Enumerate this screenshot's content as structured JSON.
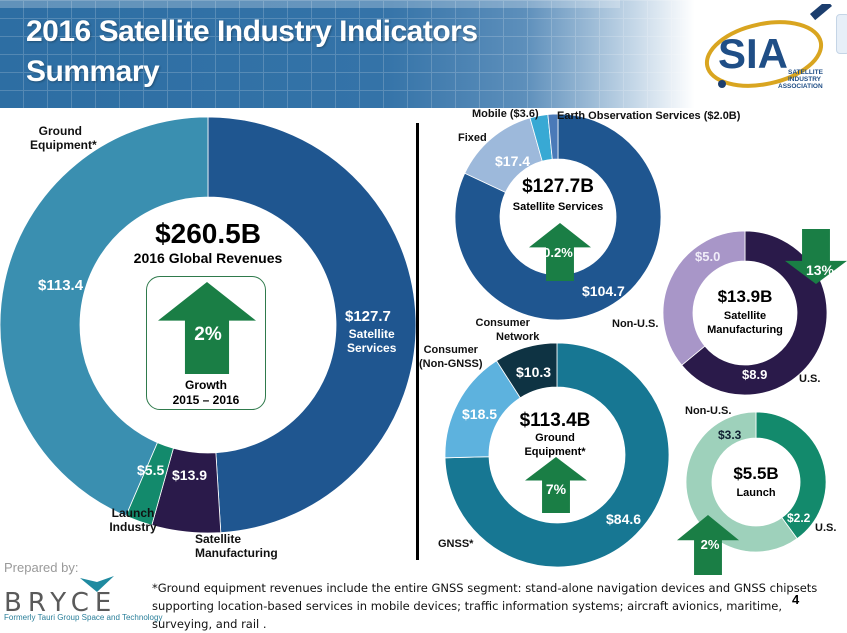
{
  "header": {
    "title_line1": "2016 Satellite Industry Indicators",
    "title_line2": "Summary",
    "logo": {
      "main": "SIA",
      "sub1": "SATELLITE",
      "sub2": "INDUSTRY",
      "sub3": "ASSOCIATION"
    }
  },
  "colors": {
    "ground_equipment": "#3a8fb0",
    "satellite_services": "#1f5690",
    "satellite_manufacturing": "#2a1a4a",
    "launch": "#138a6c",
    "growth_arrow": "#1a7e45",
    "services_fixed": "#9db9db",
    "services_mobile": "#38a9d4",
    "services_eo": "#4a7ab8",
    "mfg_nonus": "#a896c8",
    "ground_consumer_non_gnss": "#5db2de",
    "ground_network": "#0e3343",
    "ground_gnss": "#177793",
    "launch_nonus": "#9ed1bb"
  },
  "chart_data": [
    {
      "type": "pie",
      "id": "global",
      "title": "$260.5B",
      "subtitle": "2016 Global Revenues",
      "unit": "$B",
      "slices": [
        {
          "name": "Satellite Services",
          "value": 127.7,
          "label": "$127.7",
          "category_label": "Satellite Services"
        },
        {
          "name": "Satellite Manufacturing",
          "value": 13.9,
          "label": "$13.9",
          "category_label": "Satellite Manufacturing"
        },
        {
          "name": "Launch Industry",
          "value": 5.5,
          "label": "$5.5",
          "category_label": "Launch Industry"
        },
        {
          "name": "Ground Equipment*",
          "value": 113.4,
          "label": "$113.4",
          "category_label": "Ground Equipment*"
        }
      ],
      "growth": {
        "direction": "up",
        "value": "2%",
        "label_line1": "Growth",
        "label_line2": "2015 – 2016"
      }
    },
    {
      "type": "pie",
      "id": "services",
      "title": "$127.7B",
      "subtitle": "Satellite Services",
      "slices": [
        {
          "name": "Consumer",
          "value": 104.7,
          "label": "$104.7"
        },
        {
          "name": "Fixed",
          "value": 17.4,
          "label": "$17.4"
        },
        {
          "name": "Mobile",
          "value": 3.6,
          "label": "Mobile ($3.6)"
        },
        {
          "name": "Earth Observation Services",
          "value": 2.0,
          "label": "Earth Observation Services ($2.0B)"
        }
      ],
      "growth": {
        "direction": "up",
        "value": "0.2%"
      }
    },
    {
      "type": "pie",
      "id": "manufacturing",
      "title": "$13.9B",
      "subtitle_line1": "Satellite",
      "subtitle_line2": "Manufacturing",
      "slices": [
        {
          "name": "U.S.",
          "value": 8.9,
          "label": "$8.9"
        },
        {
          "name": "Non-U.S.",
          "value": 5.0,
          "label": "$5.0"
        }
      ],
      "growth": {
        "direction": "down",
        "value": "13%"
      }
    },
    {
      "type": "pie",
      "id": "ground",
      "title": "$113.4B",
      "subtitle_line1": "Ground",
      "subtitle_line2": "Equipment*",
      "slices": [
        {
          "name": "GNSS*",
          "value": 84.6,
          "label": "$84.6"
        },
        {
          "name": "Consumer (Non-GNSS)",
          "value": 18.5,
          "label": "$18.5"
        },
        {
          "name": "Network",
          "value": 10.3,
          "label": "$10.3"
        }
      ],
      "growth": {
        "direction": "up",
        "value": "7%"
      }
    },
    {
      "type": "pie",
      "id": "launch",
      "title": "$5.5B",
      "subtitle": "Launch",
      "slices": [
        {
          "name": "U.S.",
          "value": 2.2,
          "label": "$2.2"
        },
        {
          "name": "Non-U.S.",
          "value": 3.3,
          "label": "$3.3"
        }
      ],
      "growth": {
        "direction": "up",
        "value": "2%"
      }
    }
  ],
  "labels": {
    "ground_equipment_l1": "Ground",
    "ground_equipment_l2": "Equipment*",
    "launch_l1": "Launch",
    "launch_l2": "Industry",
    "sat_mfg_l1": "Satellite",
    "sat_mfg_l2": "Manufacturing",
    "sat_services_l1": "Satellite",
    "sat_services_l2": "Services",
    "mobile": "Mobile ($3.6)",
    "eo": "Earth Observation Services ($2.0B)",
    "fixed": "Fixed",
    "consumer": "Consumer",
    "services_nonus": "Non-U.S.",
    "network_l1": "Consumer",
    "network_l2": "Network",
    "consumer_ng_l1": "Consumer",
    "consumer_ng_l2": "(Non-GNSS)",
    "gnss": "GNSS*",
    "mfg_us": "U.S.",
    "launch_nonus": "Non-U.S.",
    "launch_us": "U.S."
  },
  "footer": {
    "prepared_by": "Prepared by:",
    "company": "BRYCE",
    "company_sub": "Formerly Tauri Group Space and Technology",
    "footnote": "*Ground equipment revenues include the entire GNSS segment: stand-alone navigation devices and GNSS chipsets supporting location-based services in mobile devices; traffic information systems; aircraft avionics, maritime, surveying, and rail .",
    "page_number": "4"
  }
}
